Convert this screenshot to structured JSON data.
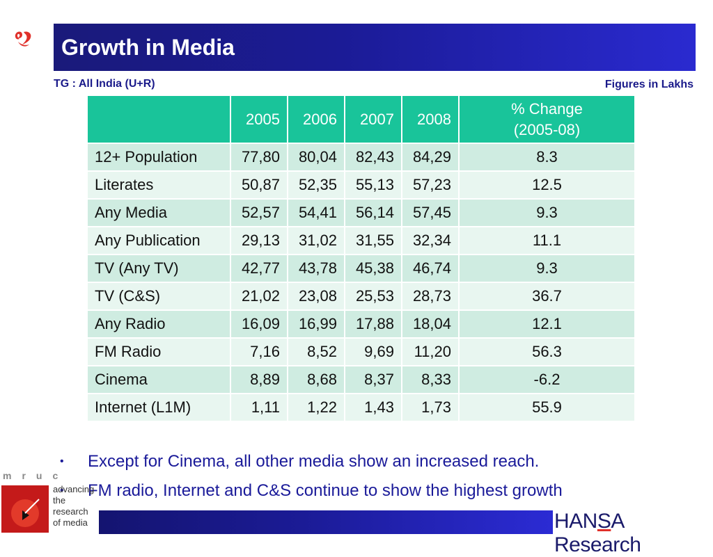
{
  "title": "Growth in Media",
  "tg_label": "TG : All India (U+R)",
  "figures_label": "Figures in Lakhs",
  "table": {
    "headers": [
      "",
      "2005",
      "2006",
      "2007",
      "2008",
      "% Change\n(2005-08)"
    ],
    "rows": [
      [
        "12+ Population",
        "77,80",
        "80,04",
        "82,43",
        "84,29",
        "8.3"
      ],
      [
        "Literates",
        "50,87",
        "52,35",
        "55,13",
        "57,23",
        "12.5"
      ],
      [
        "Any Media",
        "52,57",
        "54,41",
        "56,14",
        "57,45",
        "9.3"
      ],
      [
        "Any Publication",
        "29,13",
        "31,02",
        "31,55",
        "32,34",
        "11.1"
      ],
      [
        "TV (Any TV)",
        "42,77",
        "43,78",
        "45,38",
        "46,74",
        "9.3"
      ],
      [
        "TV (C&S)",
        "21,02",
        "23,08",
        "25,53",
        "28,73",
        "36.7"
      ],
      [
        "Any Radio",
        "16,09",
        "16,99",
        "17,88",
        "18,04",
        "12.1"
      ],
      [
        "FM Radio",
        "7,16",
        "8,52",
        "9,69",
        "11,20",
        "56.3"
      ],
      [
        "Cinema",
        "8,89",
        "8,68",
        "8,37",
        "8,33",
        "-6.2"
      ],
      [
        "Internet (L1M)",
        "1,11",
        "1,22",
        "1,43",
        "1,73",
        "55.9"
      ]
    ]
  },
  "bullets": [
    "Except for Cinema, all other media show an increased reach.",
    "FM radio, Internet and C&S continue to show the highest growth"
  ],
  "mruc": {
    "letters": "mruc",
    "tagline": [
      "advancing",
      "the",
      "research",
      "of media"
    ]
  },
  "hansa": {
    "part1": "HAN",
    "part2": "S",
    "part3": "A Research"
  },
  "colors": {
    "title_bar": "#1b1b96",
    "table_header": "#19c49a",
    "row_dark": "#cfece1",
    "row_light": "#e8f6f0",
    "text_blue": "#1a1a99"
  }
}
